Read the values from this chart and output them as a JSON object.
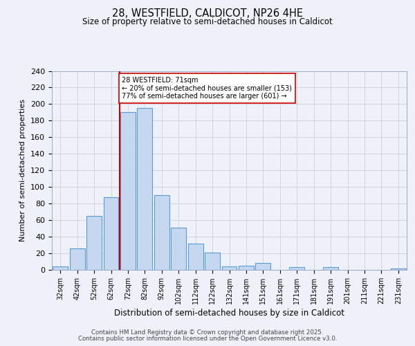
{
  "title_line1": "28, WESTFIELD, CALDICOT, NP26 4HE",
  "title_line2": "Size of property relative to semi-detached houses in Caldicot",
  "xlabel": "Distribution of semi-detached houses by size in Caldicot",
  "ylabel": "Number of semi-detached properties",
  "bar_labels": [
    "32sqm",
    "42sqm",
    "52sqm",
    "62sqm",
    "72sqm",
    "82sqm",
    "92sqm",
    "102sqm",
    "112sqm",
    "122sqm",
    "132sqm",
    "141sqm",
    "151sqm",
    "161sqm",
    "171sqm",
    "181sqm",
    "191sqm",
    "201sqm",
    "211sqm",
    "221sqm",
    "231sqm"
  ],
  "bar_values": [
    4,
    26,
    65,
    88,
    190,
    195,
    90,
    51,
    32,
    21,
    4,
    5,
    8,
    0,
    3,
    0,
    3,
    0,
    0,
    0,
    2
  ],
  "bar_color": "#c5d8f0",
  "bar_edge_color": "#5b9bd5",
  "property_label": "28 WESTFIELD: 71sqm",
  "pct_smaller": 20,
  "count_smaller": 153,
  "pct_larger": 77,
  "count_larger": 601,
  "vline_color": "#cc0000",
  "annotation_box_edge": "#cc0000",
  "ylim": [
    0,
    240
  ],
  "yticks": [
    0,
    20,
    40,
    60,
    80,
    100,
    120,
    140,
    160,
    180,
    200,
    220,
    240
  ],
  "footer_line1": "Contains HM Land Registry data © Crown copyright and database right 2025.",
  "footer_line2": "Contains public sector information licensed under the Open Government Licence v3.0.",
  "background_color": "#eef2f8",
  "plot_bg_color": "#eef2f8"
}
